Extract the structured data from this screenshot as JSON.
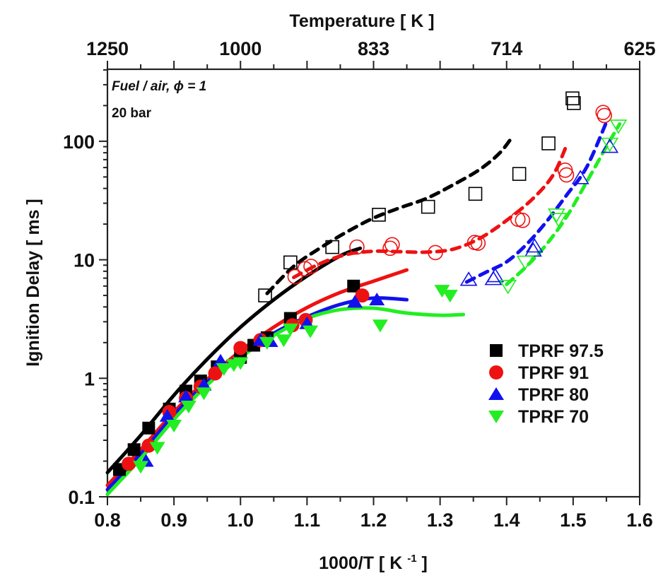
{
  "chart_data": {
    "type": "scatter",
    "title": "",
    "xlabel": "1000/T [ K ",
    "xlabel_superscript": "-1",
    "xlabel_suffix": " ]",
    "ylabel": "Ignition Delay [ ms ]",
    "top_xlabel": "Temperature [ K ]",
    "xlim": [
      0.8,
      1.6
    ],
    "ylim": [
      0.1,
      400
    ],
    "yscale": "log",
    "x_ticks": [
      0.8,
      0.9,
      1.0,
      1.1,
      1.2,
      1.3,
      1.4,
      1.5,
      1.6
    ],
    "x_tick_labels": [
      "0.8",
      "0.9",
      "1.0",
      "1.1",
      "1.2",
      "1.3",
      "1.4",
      "1.5",
      "1.6"
    ],
    "y_ticks": [
      0.1,
      1,
      10,
      100
    ],
    "y_tick_labels": [
      "0.1",
      "1",
      "10",
      "100"
    ],
    "top_ticks": [
      {
        "label": "1250",
        "x": 0.8
      },
      {
        "label": "1000",
        "x": 1.0
      },
      {
        "label": "833",
        "x": 1.2
      },
      {
        "label": "714",
        "x": 1.4
      },
      {
        "label": "625",
        "x": 1.6
      }
    ],
    "annotations": [
      "Fuel / air, ϕ = 1",
      "20 bar"
    ],
    "legend_position": "bottom-right",
    "grid": false,
    "series": [
      {
        "name": "TPRF 97.5",
        "color": "#000000",
        "marker": "square",
        "filled_points": [
          [
            0.818,
            0.17
          ],
          [
            0.84,
            0.25
          ],
          [
            0.862,
            0.38
          ],
          [
            0.893,
            0.55
          ],
          [
            0.918,
            0.78
          ],
          [
            0.94,
            0.95
          ],
          [
            0.965,
            1.25
          ],
          [
            1.0,
            1.5
          ],
          [
            1.02,
            1.9
          ],
          [
            1.04,
            2.2
          ],
          [
            1.075,
            3.2
          ],
          [
            1.17,
            6.0
          ]
        ],
        "open_points": [
          [
            1.037,
            5.0
          ],
          [
            1.075,
            9.5
          ],
          [
            1.138,
            12.8
          ],
          [
            1.208,
            24
          ],
          [
            1.282,
            28
          ],
          [
            1.353,
            36
          ],
          [
            1.419,
            53
          ],
          [
            1.463,
            96
          ],
          [
            1.499,
            230
          ],
          [
            1.501,
            210
          ]
        ],
        "model_solid": [
          [
            0.8,
            0.16
          ],
          [
            0.85,
            0.33
          ],
          [
            0.9,
            0.72
          ],
          [
            0.95,
            1.45
          ],
          [
            1.0,
            2.7
          ],
          [
            1.05,
            4.6
          ],
          [
            1.1,
            7.3
          ],
          [
            1.15,
            10.8
          ],
          [
            1.18,
            12.5
          ]
        ],
        "model_dashed": [
          [
            1.04,
            5.2
          ],
          [
            1.08,
            8.8
          ],
          [
            1.12,
            12.6
          ],
          [
            1.16,
            17.2
          ],
          [
            1.2,
            22.5
          ],
          [
            1.24,
            27.5
          ],
          [
            1.28,
            33
          ],
          [
            1.32,
            43
          ],
          [
            1.36,
            58
          ],
          [
            1.39,
            80
          ],
          [
            1.41,
            112
          ]
        ]
      },
      {
        "name": "TPRF 91",
        "color": "#ee1111",
        "marker": "circle",
        "filled_points": [
          [
            0.832,
            0.19
          ],
          [
            0.862,
            0.27
          ],
          [
            0.893,
            0.52
          ],
          [
            0.918,
            0.68
          ],
          [
            0.94,
            0.85
          ],
          [
            0.962,
            1.1
          ],
          [
            1.0,
            1.8
          ],
          [
            1.03,
            2.1
          ],
          [
            1.078,
            2.8
          ],
          [
            1.098,
            3.1
          ],
          [
            1.183,
            5.0
          ]
        ],
        "open_points": [
          [
            1.082,
            7.2
          ],
          [
            1.097,
            8.4
          ],
          [
            1.106,
            8.8
          ],
          [
            1.175,
            12.8
          ],
          [
            1.225,
            12.5
          ],
          [
            1.228,
            13.4
          ],
          [
            1.293,
            11.5
          ],
          [
            1.352,
            14.0
          ],
          [
            1.357,
            13.8
          ],
          [
            1.417,
            22
          ],
          [
            1.424,
            21.5
          ],
          [
            1.488,
            57
          ],
          [
            1.49,
            52
          ],
          [
            1.545,
            175
          ],
          [
            1.547,
            165
          ]
        ],
        "model_solid": [
          [
            0.8,
            0.125
          ],
          [
            0.85,
            0.25
          ],
          [
            0.9,
            0.52
          ],
          [
            0.95,
            0.98
          ],
          [
            1.0,
            1.7
          ],
          [
            1.05,
            2.7
          ],
          [
            1.1,
            3.95
          ],
          [
            1.15,
            5.3
          ],
          [
            1.2,
            6.6
          ],
          [
            1.25,
            8.2
          ]
        ],
        "model_dashed": [
          [
            1.08,
            7.1
          ],
          [
            1.12,
            9.3
          ],
          [
            1.16,
            11.1
          ],
          [
            1.2,
            11.8
          ],
          [
            1.24,
            11.7
          ],
          [
            1.28,
            11.6
          ],
          [
            1.32,
            12.3
          ],
          [
            1.36,
            15.2
          ],
          [
            1.4,
            21.5
          ],
          [
            1.44,
            33
          ],
          [
            1.47,
            52
          ],
          [
            1.49,
            92
          ]
        ]
      },
      {
        "name": "TPRF 80",
        "color": "#1111ee",
        "marker": "triangle-up",
        "filled_points": [
          [
            0.858,
            0.2
          ],
          [
            0.89,
            0.48
          ],
          [
            0.918,
            0.7
          ],
          [
            0.945,
            0.88
          ],
          [
            0.97,
            1.4
          ],
          [
            1.03,
            2.1
          ],
          [
            1.045,
            2.05
          ],
          [
            1.1,
            2.9
          ],
          [
            1.172,
            4.4
          ],
          [
            1.205,
            4.6
          ]
        ],
        "open_points": [
          [
            1.343,
            6.8
          ],
          [
            1.38,
            6.9
          ],
          [
            1.383,
            7.3
          ],
          [
            1.442,
            13
          ],
          [
            1.44,
            12
          ],
          [
            1.511,
            49
          ],
          [
            1.555,
            90
          ]
        ],
        "model_solid": [
          [
            0.8,
            0.115
          ],
          [
            0.85,
            0.23
          ],
          [
            0.9,
            0.49
          ],
          [
            0.95,
            0.93
          ],
          [
            1.0,
            1.58
          ],
          [
            1.05,
            2.4
          ],
          [
            1.1,
            3.3
          ],
          [
            1.15,
            4.2
          ],
          [
            1.2,
            4.75
          ],
          [
            1.25,
            4.6
          ]
        ],
        "model_dashed": [
          [
            1.34,
            6.5
          ],
          [
            1.37,
            7.9
          ],
          [
            1.4,
            9.6
          ],
          [
            1.43,
            13.5
          ],
          [
            1.46,
            21
          ],
          [
            1.49,
            35
          ],
          [
            1.52,
            60
          ],
          [
            1.55,
            145
          ]
        ]
      },
      {
        "name": "TPRF 70",
        "color": "#22ee22",
        "marker": "triangle-down",
        "filled_points": [
          [
            0.85,
            0.18
          ],
          [
            0.875,
            0.26
          ],
          [
            0.9,
            0.4
          ],
          [
            0.922,
            0.58
          ],
          [
            0.945,
            0.75
          ],
          [
            0.975,
            1.2
          ],
          [
            0.99,
            1.3
          ],
          [
            1.0,
            1.35
          ],
          [
            1.04,
            2.0
          ],
          [
            1.065,
            2.1
          ],
          [
            1.075,
            2.6
          ],
          [
            1.105,
            2.5
          ],
          [
            1.21,
            2.8
          ],
          [
            1.303,
            5.5
          ],
          [
            1.315,
            5.0
          ]
        ],
        "open_points": [
          [
            1.402,
            6.0
          ],
          [
            1.428,
            9.6
          ],
          [
            1.475,
            24
          ],
          [
            1.478,
            22
          ],
          [
            1.555,
            95
          ],
          [
            1.568,
            135
          ]
        ],
        "model_solid": [
          [
            0.8,
            0.105
          ],
          [
            0.85,
            0.21
          ],
          [
            0.9,
            0.45
          ],
          [
            0.95,
            0.88
          ],
          [
            1.0,
            1.5
          ],
          [
            1.05,
            2.3
          ],
          [
            1.1,
            3.2
          ],
          [
            1.15,
            3.8
          ],
          [
            1.2,
            3.9
          ],
          [
            1.25,
            3.55
          ],
          [
            1.3,
            3.4
          ],
          [
            1.335,
            3.45
          ]
        ],
        "model_dashed": [
          [
            1.4,
            6.2
          ],
          [
            1.43,
            8.8
          ],
          [
            1.46,
            13.5
          ],
          [
            1.49,
            23
          ],
          [
            1.52,
            45
          ],
          [
            1.55,
            90
          ],
          [
            1.57,
            140
          ]
        ]
      }
    ]
  }
}
